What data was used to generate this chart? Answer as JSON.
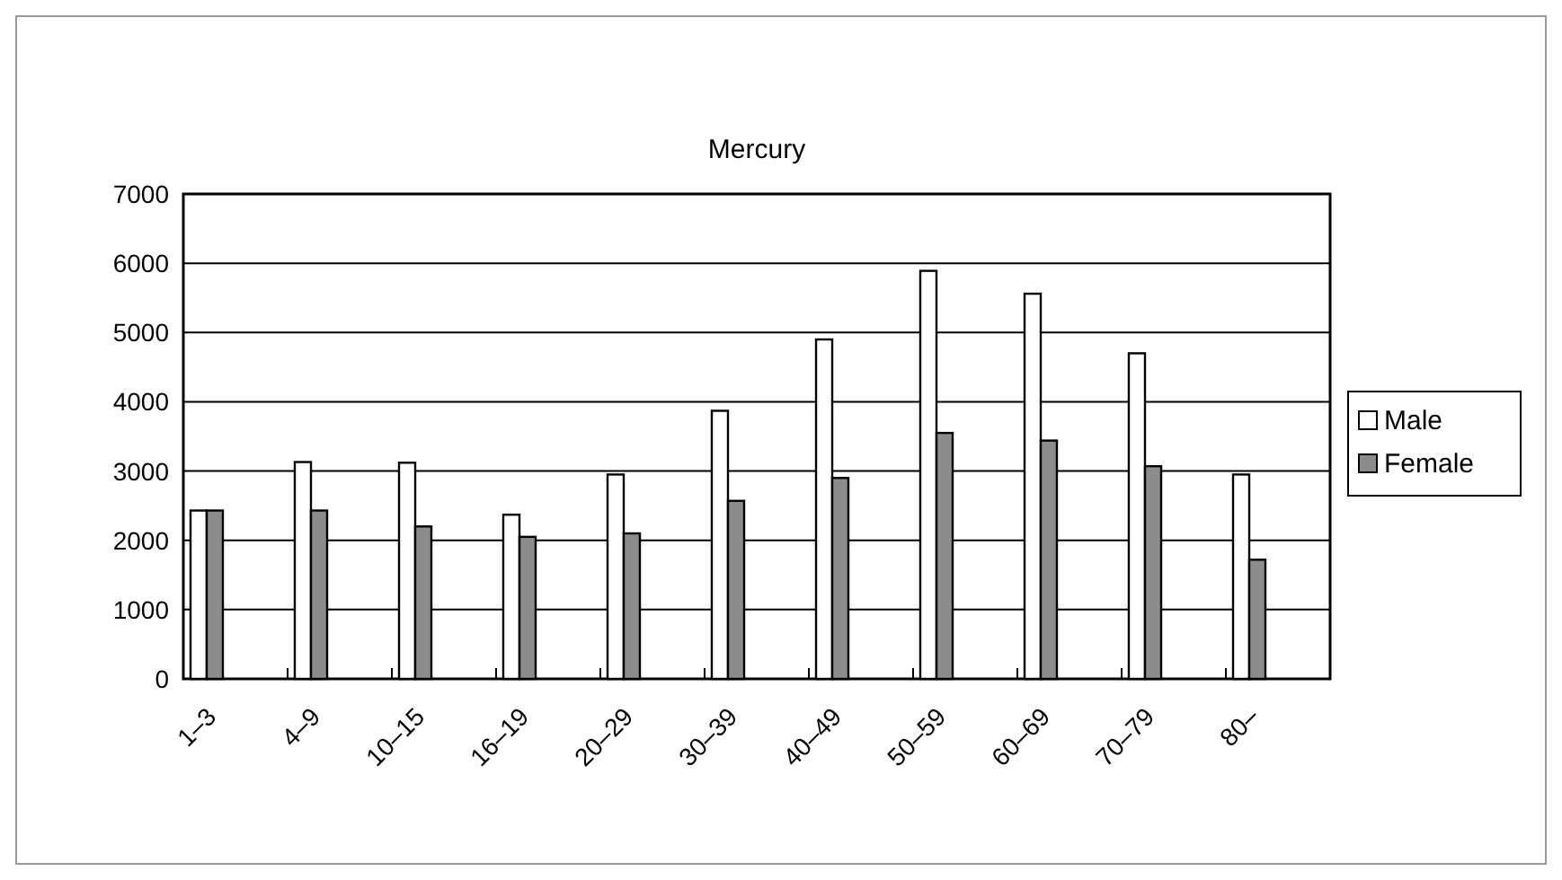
{
  "chart_data": {
    "type": "bar",
    "title": "Mercury",
    "categories": [
      "1–3",
      "4–9",
      "10–15",
      "16–19",
      "20–29",
      "30–39",
      "40–49",
      "50–59",
      "60–69",
      "70–79",
      "80–"
    ],
    "series": [
      {
        "name": "Male",
        "color": "#ffffff",
        "values": [
          2430,
          3130,
          3120,
          2370,
          2950,
          3870,
          4900,
          5890,
          5560,
          4700,
          2950
        ]
      },
      {
        "name": "Female",
        "color": "#8c8c8c",
        "values": [
          2430,
          2430,
          2200,
          2050,
          2100,
          2570,
          2900,
          3550,
          3440,
          3070,
          1720
        ]
      }
    ],
    "ylim": [
      0,
      7000
    ],
    "yticks": [
      0,
      1000,
      2000,
      3000,
      4000,
      5000,
      6000,
      7000
    ],
    "grid": "y",
    "legend": "right"
  }
}
